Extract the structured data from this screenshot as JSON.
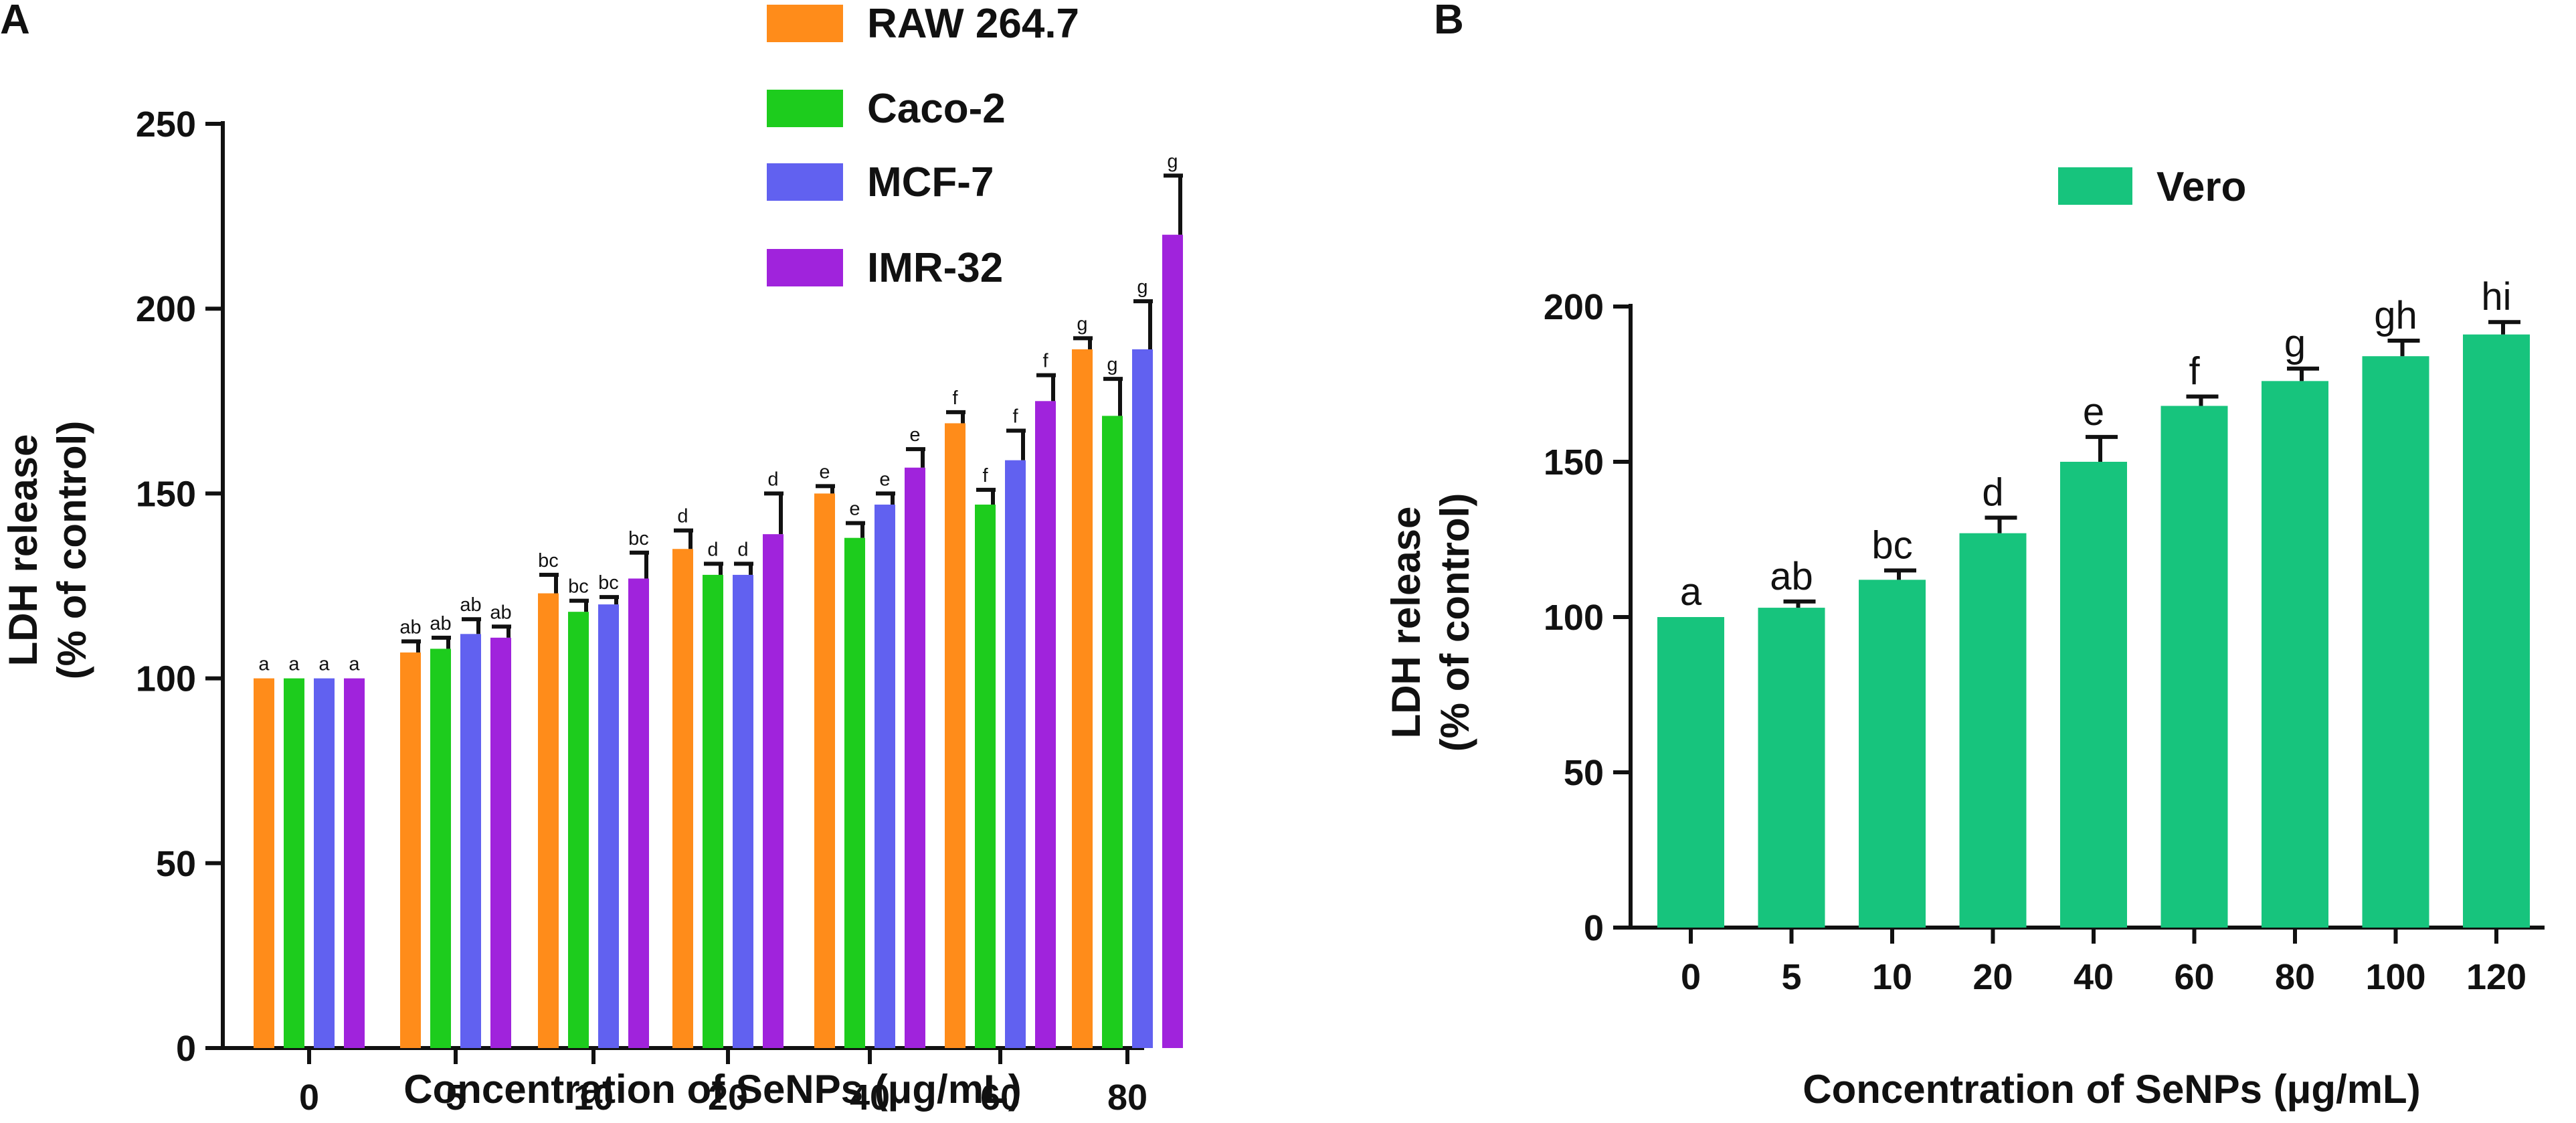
{
  "chart_data": [
    {
      "panel_label": "A",
      "type": "bar",
      "title": "",
      "xlabel": "Concentration of SeNPs (μg/mL)",
      "ylabel_line1": "LDH release",
      "ylabel_line2": "(% of control)",
      "ylim": [
        0,
        250
      ],
      "yticks": [
        "0",
        "50",
        "100",
        "150",
        "200",
        "250"
      ],
      "categories": [
        "0",
        "5",
        "10",
        "20",
        "40",
        "60",
        "80"
      ],
      "legend_position": "top",
      "series": [
        {
          "name": "RAW 264.7",
          "color": "#FF8C1A",
          "values": [
            100,
            107,
            123,
            135,
            150,
            169,
            189
          ],
          "errors": [
            0,
            3,
            5,
            5,
            2,
            3,
            3
          ],
          "letters": [
            "a",
            "ab",
            "bc",
            "d",
            "e",
            "f",
            "g"
          ]
        },
        {
          "name": "Caco-2",
          "color": "#1DCC1D",
          "values": [
            100,
            108,
            118,
            128,
            138,
            147,
            171
          ],
          "errors": [
            0,
            3,
            3,
            3,
            4,
            4,
            10
          ],
          "letters": [
            "a",
            "ab",
            "bc",
            "d",
            "e",
            "f",
            "g"
          ]
        },
        {
          "name": "MCF-7",
          "color": "#6161F0",
          "values": [
            100,
            112,
            120,
            128,
            147,
            159,
            189
          ],
          "errors": [
            0,
            4,
            2,
            3,
            3,
            8,
            13
          ],
          "letters": [
            "a",
            "ab",
            "bc",
            "d",
            "e",
            "f",
            "g"
          ]
        },
        {
          "name": "IMR-32",
          "color": "#A023DC",
          "values": [
            100,
            111,
            127,
            139,
            157,
            175,
            220
          ],
          "errors": [
            0,
            3,
            7,
            11,
            5,
            7,
            16
          ],
          "letters": [
            "a",
            "ab",
            "bc",
            "d",
            "e",
            "f",
            "g"
          ]
        }
      ]
    },
    {
      "panel_label": "B",
      "type": "bar",
      "title": "",
      "xlabel": "Concentration of SeNPs (μg/mL)",
      "ylabel_line1": "LDH release",
      "ylabel_line2": "(% of control)",
      "ylim": [
        0,
        200
      ],
      "yticks": [
        "0",
        "50",
        "100",
        "150",
        "200"
      ],
      "categories": [
        "0",
        "5",
        "10",
        "20",
        "40",
        "60",
        "80",
        "100",
        "120"
      ],
      "legend_position": "top-center",
      "series": [
        {
          "name": "Vero",
          "color": "#17C47D",
          "values": [
            100,
            103,
            112,
            127,
            150,
            168,
            176,
            184,
            191
          ],
          "errors": [
            0,
            2,
            3,
            5,
            8,
            3,
            4,
            5,
            4
          ],
          "letters": [
            "a",
            "ab",
            "bc",
            "d",
            "e",
            "f",
            "g",
            "gh",
            "hi"
          ]
        }
      ]
    }
  ]
}
